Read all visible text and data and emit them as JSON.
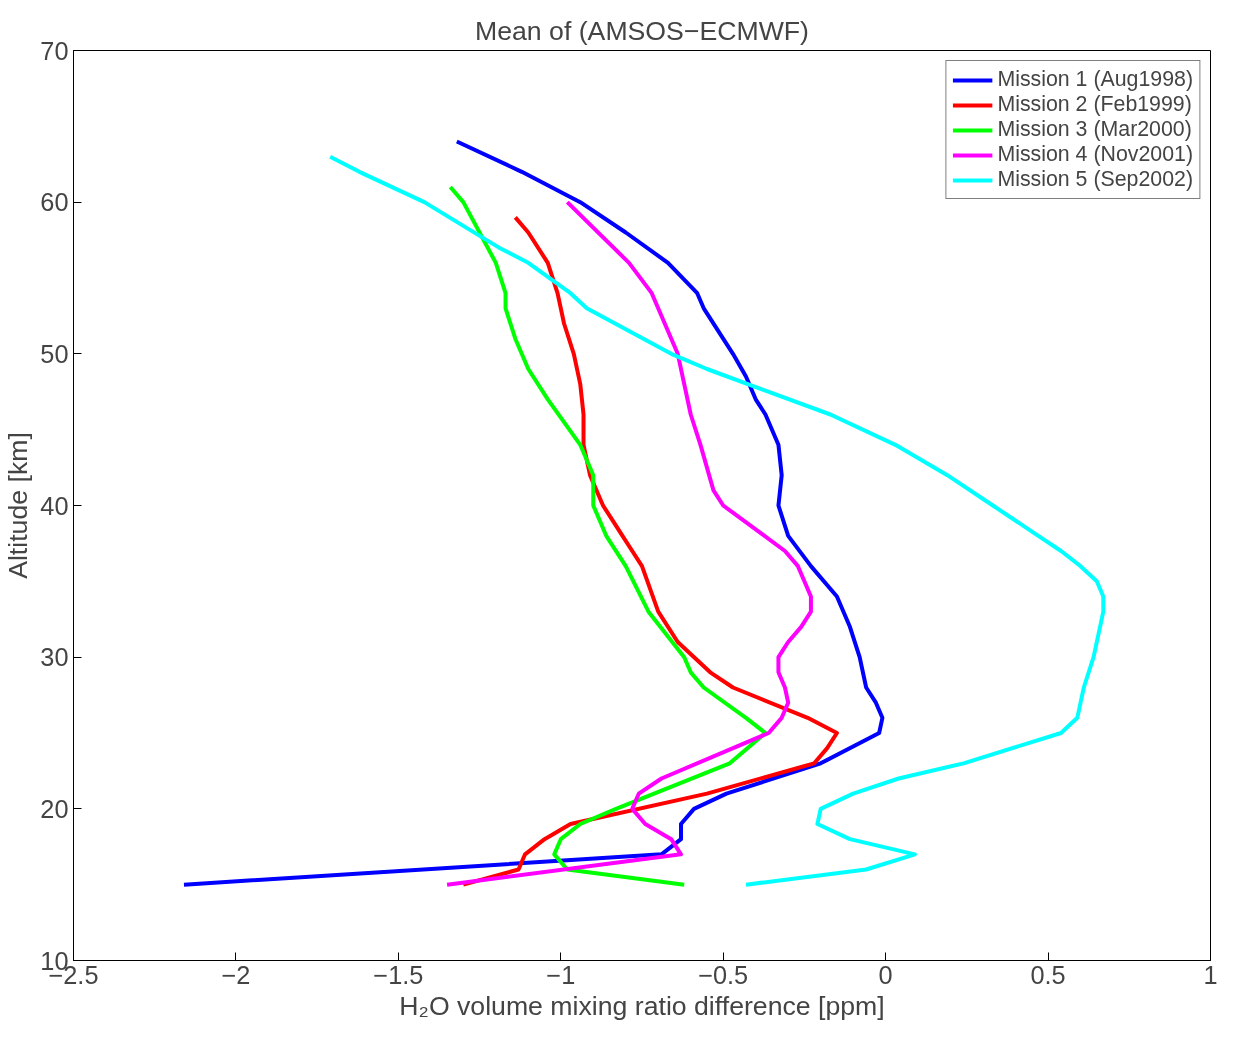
{
  "chart_data": {
    "type": "line",
    "title": "Mean of (AMSOS−ECMWF)",
    "xlabel": "H₂O volume mixing ratio difference [ppm]",
    "ylabel": "Altitude [km]",
    "xlim": [
      -2.5,
      1
    ],
    "xticks": [
      {
        "value": -2.5,
        "label": "−2.5"
      },
      {
        "value": -2,
        "label": "−2"
      },
      {
        "value": -1.5,
        "label": "−1.5"
      },
      {
        "value": -1,
        "label": "−1"
      },
      {
        "value": -0.5,
        "label": "−0.5"
      },
      0,
      0.5,
      1
    ],
    "ylim": [
      10,
      70
    ],
    "yticks": [
      10,
      20,
      30,
      40,
      50,
      60,
      70
    ],
    "grid": false,
    "legend": "top right",
    "line_style": "solid",
    "marker": "none",
    "series": [
      {
        "name": "Mission 1 (Aug1998)",
        "color": "#0000ff",
        "x": [
          -1.32,
          -1.12,
          -0.94,
          -0.8,
          -0.67,
          -0.58,
          -0.56,
          -0.47,
          -0.43,
          -0.4,
          -0.37,
          -0.33,
          -0.32,
          -0.33,
          -0.3,
          -0.23,
          -0.15,
          -0.11,
          -0.08,
          -0.06,
          -0.03,
          -0.01,
          -0.02,
          -0.2,
          -0.49,
          -0.59,
          -0.63,
          -0.63,
          -0.69,
          -2.16
        ],
        "values": [
          64,
          62,
          60,
          58,
          56,
          54,
          53,
          50,
          48.5,
          47,
          46,
          44,
          42,
          40,
          38,
          36,
          34,
          32,
          30,
          28,
          27,
          26,
          25,
          23,
          21,
          20,
          19,
          18,
          17,
          15
        ]
      },
      {
        "name": "Mission 2 (Feb1999)",
        "color": "#ff0000",
        "x": [
          -1.14,
          -1.1,
          -1.04,
          -1.01,
          -0.99,
          -0.96,
          -0.94,
          -0.93,
          -0.93,
          -0.91,
          -0.87,
          -0.84,
          -0.81,
          -0.78,
          -0.75,
          -0.7,
          -0.64,
          -0.54,
          -0.47,
          -0.24,
          -0.15,
          -0.18,
          -0.22,
          -0.55,
          -0.97,
          -1.05,
          -1.11,
          -1.13,
          -1.3
        ],
        "values": [
          59,
          58,
          56,
          54,
          52,
          50,
          48,
          46,
          44,
          42,
          40,
          39,
          38,
          37,
          36,
          33,
          31,
          29,
          28,
          26,
          25,
          24,
          23,
          21,
          19,
          18,
          17,
          16,
          15
        ]
      },
      {
        "name": "Mission 3 (Mar2000)",
        "color": "#00ff00",
        "x": [
          -1.34,
          -1.3,
          -1.2,
          -1.17,
          -1.17,
          -1.14,
          -1.1,
          -1.04,
          -0.94,
          -0.9,
          -0.9,
          -0.86,
          -0.8,
          -0.73,
          -0.62,
          -0.6,
          -0.56,
          -0.43,
          -0.37,
          -0.48,
          -0.83,
          -0.94,
          -1.0,
          -1.02,
          -0.98,
          -0.62
        ],
        "values": [
          61,
          60,
          56,
          54,
          53,
          51,
          49,
          47,
          44,
          42,
          40,
          38,
          36,
          33,
          30,
          29,
          28,
          26,
          25,
          23,
          20,
          19,
          18,
          17,
          16,
          15
        ]
      },
      {
        "name": "Mission 4 (Nov2001)",
        "color": "#ff00ff",
        "x": [
          -0.98,
          -0.79,
          -0.72,
          -0.64,
          -0.62,
          -0.6,
          -0.57,
          -0.53,
          -0.5,
          -0.31,
          -0.27,
          -0.23,
          -0.23,
          -0.26,
          -0.3,
          -0.33,
          -0.33,
          -0.31,
          -0.3,
          -0.32,
          -0.36,
          -0.69,
          -0.76,
          -0.78,
          -0.74,
          -0.66,
          -0.63,
          -1.35
        ],
        "values": [
          60,
          56,
          54,
          50,
          48,
          46,
          44,
          41,
          40,
          37,
          36,
          34,
          33,
          32,
          31,
          30,
          29,
          28,
          27,
          26,
          25,
          22,
          21,
          20,
          19,
          18,
          17,
          15
        ]
      },
      {
        "name": "Mission 5 (Sep2002)",
        "color": "#00ffff",
        "x": [
          -1.71,
          -1.62,
          -1.42,
          -1.19,
          -1.1,
          -0.97,
          -0.92,
          -0.66,
          -0.55,
          -0.17,
          0.03,
          0.19,
          0.33,
          0.47,
          0.54,
          0.6,
          0.65,
          0.67,
          0.67,
          0.66,
          0.64,
          0.61,
          0.59,
          0.54,
          0.24,
          0.04,
          -0.1,
          -0.2,
          -0.21,
          -0.11,
          0.09,
          -0.06,
          -0.43
        ],
        "values": [
          63,
          62,
          60,
          57,
          56,
          54,
          53,
          50,
          49,
          46,
          44,
          42,
          40,
          38,
          37,
          36,
          35,
          34,
          33,
          32,
          30,
          28,
          26,
          25,
          23,
          22,
          21,
          20,
          19,
          18,
          17,
          16,
          15
        ]
      }
    ]
  }
}
